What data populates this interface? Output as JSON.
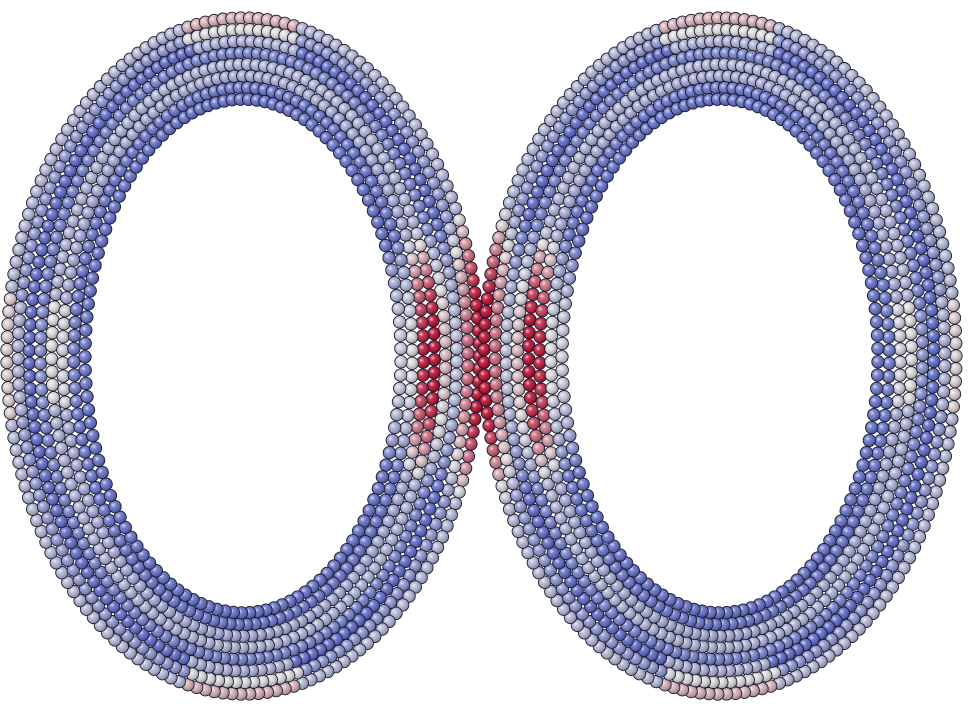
{
  "scene": {
    "description_visible_text": "",
    "objects": [
      {
        "id": "left-ring",
        "shape": "elliptical-ring-of-spheres"
      },
      {
        "id": "right-ring",
        "shape": "elliptical-ring-of-spheres"
      }
    ],
    "colormap": {
      "low": "#3b4cc0",
      "mid": "#dddcdc",
      "high": "#b40426"
    },
    "background": "#ffffff",
    "sphere_outline": "#1a1a2e"
  }
}
